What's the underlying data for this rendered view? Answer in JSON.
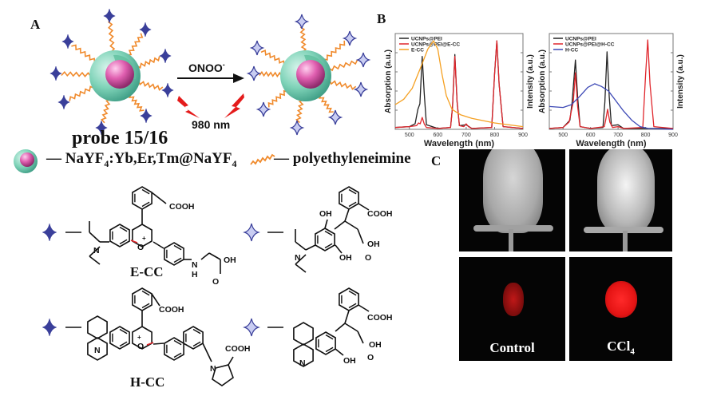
{
  "panel_labels": {
    "a": "A",
    "b": "B",
    "c": "C"
  },
  "scheme": {
    "reagent": "ONOO",
    "reagent_charge": "-",
    "excitation": "980 nm",
    "probe_label": "probe 15/16",
    "core_label": {
      "dash": "—",
      "p1": "NaYF",
      "s1": "4",
      "p2": ":Yb,Er,Tm@NaYF",
      "s2": "4"
    },
    "ligand_label": "— polyethyleneimine",
    "colors": {
      "shell": "#7fd3b8",
      "core": "#e05fb0",
      "linker": "#f08a2c",
      "probe_star": "#3a3f9a",
      "product_star": "#c9cdf2",
      "bolt": "#e41b1b"
    }
  },
  "structures": {
    "e_cc": {
      "name": "E-CC",
      "cooh": "COOH",
      "n": "N",
      "o_plus": "O",
      "plus": "+",
      "nh": "N",
      "h": "H",
      "oh": "OH",
      "o": "O"
    },
    "e_product": {
      "cooh": "COOH",
      "oh_top": "OH",
      "oh_bottom": "OH",
      "n": "N",
      "oh": "OH",
      "o": "O"
    },
    "h_cc": {
      "name": "H-CC",
      "cooh": "COOH",
      "n": "N",
      "o_plus": "O",
      "plus": "+",
      "n2": "N",
      "cooh2": "COOH"
    },
    "h_product": {
      "cooh": "COOH",
      "n": "N",
      "oh_bottom": "OH",
      "oh": "OH",
      "o": "O"
    }
  },
  "chart_data": [
    {
      "type": "line",
      "xlabel": "Wavelength (nm)",
      "ylabel_left": "Absorption (a.u.)",
      "ylabel_right": "Intensity (a.u.)",
      "xlim": [
        450,
        900
      ],
      "ylim": [
        0,
        1.05
      ],
      "xticks": [
        500,
        600,
        700,
        800,
        900
      ],
      "legend_position": "top-left",
      "series": [
        {
          "name": "UCNPs@PEI",
          "color": "#222222",
          "points": [
            [
              450,
              0.02
            ],
            [
              500,
              0.03
            ],
            [
              520,
              0.06
            ],
            [
              530,
              0.22
            ],
            [
              537,
              0.28
            ],
            [
              545,
              0.8
            ],
            [
              552,
              0.4
            ],
            [
              560,
              0.05
            ],
            [
              600,
              0.01
            ],
            [
              645,
              0.02
            ],
            [
              652,
              0.25
            ],
            [
              660,
              0.82
            ],
            [
              668,
              0.3
            ],
            [
              676,
              0.04
            ],
            [
              700,
              0.05
            ],
            [
              720,
              0.01
            ],
            [
              790,
              0.02
            ],
            [
              800,
              0.6
            ],
            [
              808,
              0.97
            ],
            [
              816,
              0.5
            ],
            [
              830,
              0.03
            ],
            [
              900,
              0.01
            ]
          ]
        },
        {
          "name": "UCNPs@PEI@E-CC",
          "color": "#e0262c",
          "points": [
            [
              450,
              0.02
            ],
            [
              500,
              0.03
            ],
            [
              525,
              0.04
            ],
            [
              532,
              0.07
            ],
            [
              538,
              0.06
            ],
            [
              545,
              0.13
            ],
            [
              552,
              0.06
            ],
            [
              560,
              0.02
            ],
            [
              600,
              0.01
            ],
            [
              645,
              0.02
            ],
            [
              652,
              0.24
            ],
            [
              660,
              0.8
            ],
            [
              668,
              0.3
            ],
            [
              676,
              0.04
            ],
            [
              692,
              0.03
            ],
            [
              700,
              0.06
            ],
            [
              708,
              0.03
            ],
            [
              720,
              0.01
            ],
            [
              790,
              0.02
            ],
            [
              800,
              0.6
            ],
            [
              808,
              0.97
            ],
            [
              816,
              0.5
            ],
            [
              830,
              0.03
            ],
            [
              900,
              0.01
            ]
          ]
        },
        {
          "name": "E-CC",
          "color": "#f5a021",
          "points": [
            [
              450,
              0.27
            ],
            [
              480,
              0.33
            ],
            [
              510,
              0.45
            ],
            [
              540,
              0.68
            ],
            [
              565,
              0.88
            ],
            [
              585,
              0.97
            ],
            [
              600,
              0.88
            ],
            [
              615,
              0.6
            ],
            [
              630,
              0.37
            ],
            [
              650,
              0.22
            ],
            [
              680,
              0.16
            ],
            [
              720,
              0.12
            ],
            [
              800,
              0.07
            ],
            [
              900,
              0.03
            ]
          ]
        }
      ]
    },
    {
      "type": "line",
      "xlabel": "Wavelength (nm)",
      "ylabel_left": "Absorption (a.u.)",
      "ylabel_right": "Intensity (a.u.)",
      "xlim": [
        450,
        900
      ],
      "ylim": [
        0,
        1.05
      ],
      "xticks": [
        500,
        600,
        700,
        800,
        900
      ],
      "legend_position": "top-left",
      "series": [
        {
          "name": "UCNPs@PEI",
          "color": "#222222",
          "points": [
            [
              450,
              0.01
            ],
            [
              500,
              0.02
            ],
            [
              525,
              0.1
            ],
            [
              533,
              0.3
            ],
            [
              545,
              0.76
            ],
            [
              553,
              0.35
            ],
            [
              562,
              0.03
            ],
            [
              600,
              0.01
            ],
            [
              645,
              0.02
            ],
            [
              652,
              0.3
            ],
            [
              660,
              0.85
            ],
            [
              668,
              0.35
            ],
            [
              676,
              0.04
            ],
            [
              700,
              0.05
            ],
            [
              720,
              0.01
            ],
            [
              900,
              0.01
            ]
          ]
        },
        {
          "name": "UCNPs@PEI@H-CC",
          "color": "#e0262c",
          "points": [
            [
              450,
              0.01
            ],
            [
              500,
              0.02
            ],
            [
              522,
              0.08
            ],
            [
              530,
              0.2
            ],
            [
              537,
              0.3
            ],
            [
              545,
              0.62
            ],
            [
              553,
              0.25
            ],
            [
              562,
              0.03
            ],
            [
              600,
              0.01
            ],
            [
              650,
              0.03
            ],
            [
              656,
              0.12
            ],
            [
              662,
              0.22
            ],
            [
              670,
              0.08
            ],
            [
              680,
              0.02
            ],
            [
              700,
              0.03
            ],
            [
              720,
              0.01
            ],
            [
              790,
              0.02
            ],
            [
              800,
              0.6
            ],
            [
              808,
              0.98
            ],
            [
              816,
              0.5
            ],
            [
              830,
              0.03
            ],
            [
              900,
              0.01
            ]
          ]
        },
        {
          "name": "H-CC",
          "color": "#3c48b5",
          "points": [
            [
              450,
              0.25
            ],
            [
              500,
              0.24
            ],
            [
              530,
              0.27
            ],
            [
              560,
              0.36
            ],
            [
              590,
              0.46
            ],
            [
              615,
              0.5
            ],
            [
              640,
              0.47
            ],
            [
              665,
              0.42
            ],
            [
              690,
              0.32
            ],
            [
              720,
              0.2
            ],
            [
              750,
              0.1
            ],
            [
              780,
              0.03
            ],
            [
              810,
              0.01
            ],
            [
              900,
              0.0
            ]
          ]
        }
      ]
    }
  ],
  "images": {
    "control_label": "Control",
    "ccl4_label": {
      "main": "CCl",
      "sub": "4"
    }
  }
}
